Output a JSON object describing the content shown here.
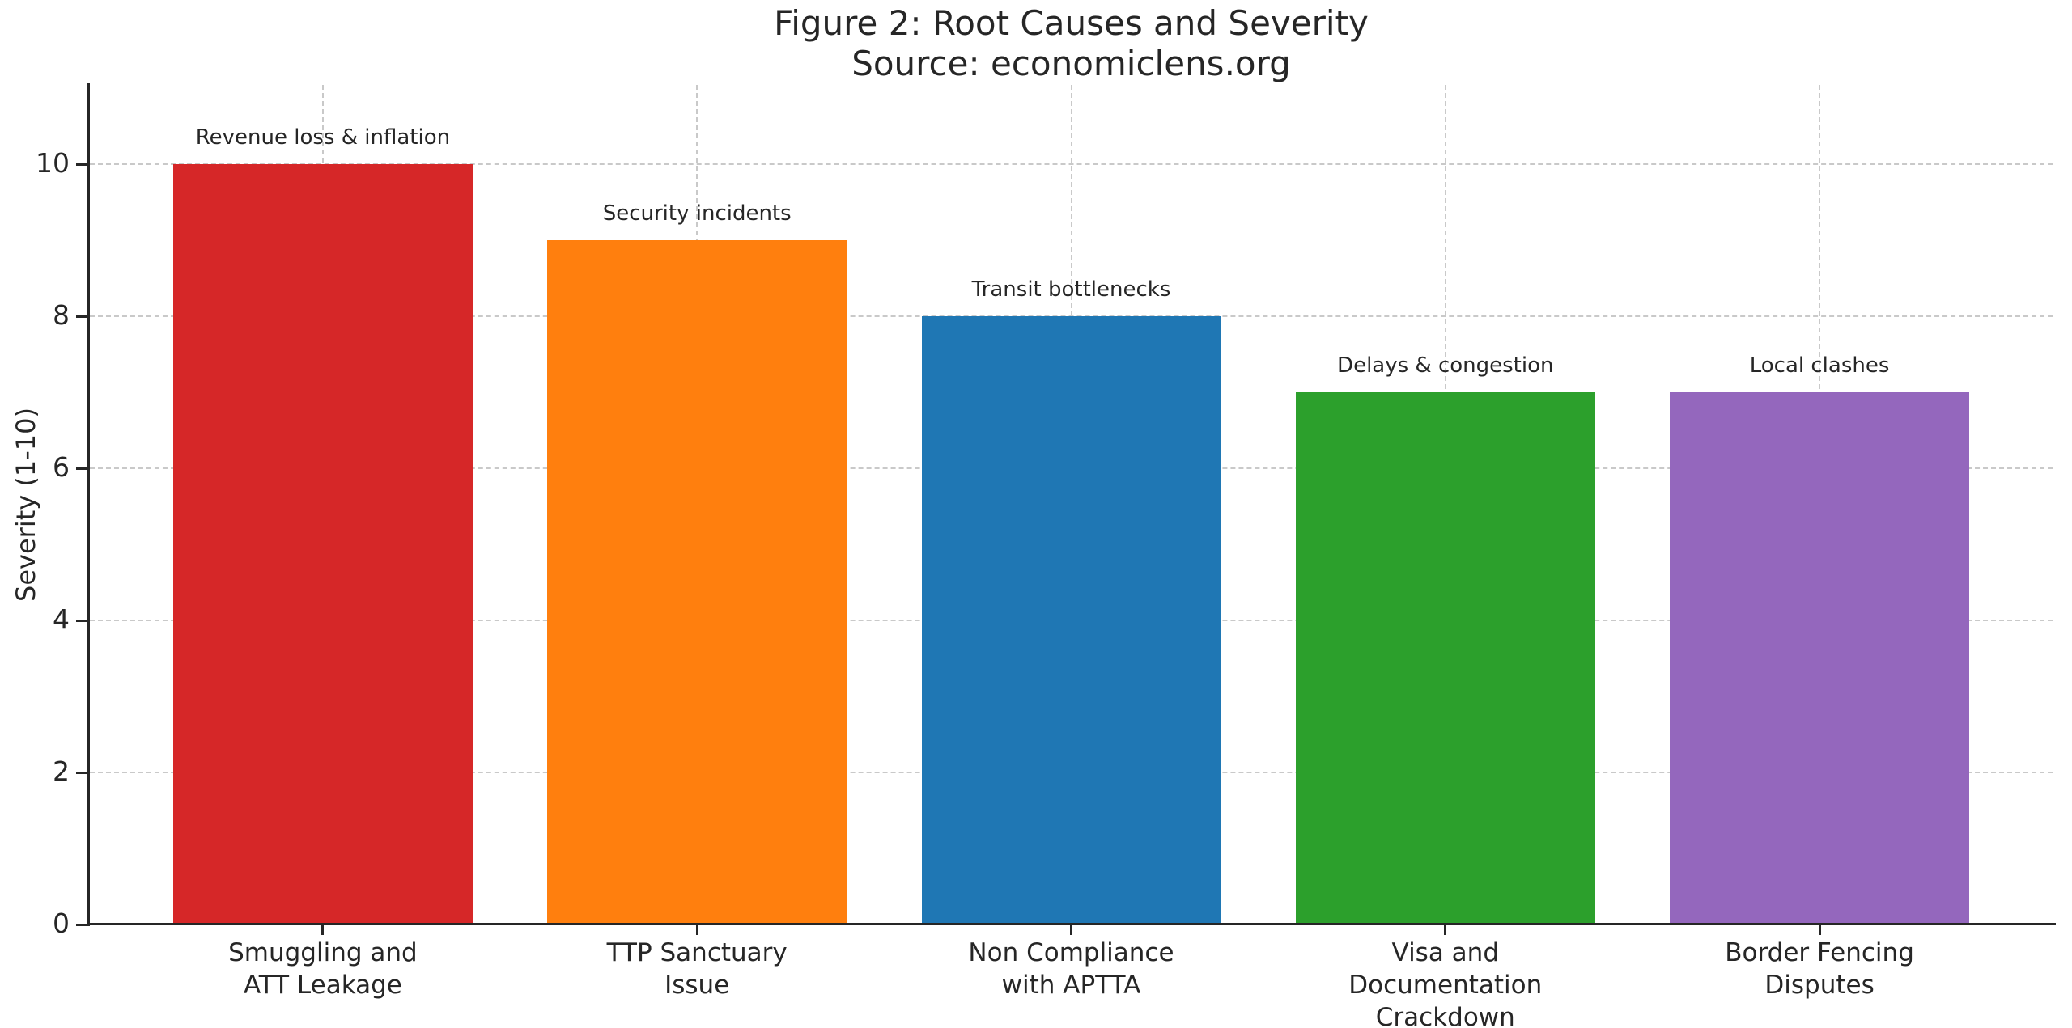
{
  "chart_data": {
    "type": "bar",
    "title": "Figure 2: Root Causes and Severity",
    "subtitle": "Source: economiclens.org",
    "ylabel": "Severity (1-10)",
    "xlabel": "",
    "categories": [
      "Smuggling and\nATT Leakage",
      "TTP Sanctuary\nIssue",
      "Non Compliance\nwith APTTA",
      "Visa and\nDocumentation\nCrackdown",
      "Border Fencing\nDisputes"
    ],
    "values": [
      10,
      9,
      8,
      7,
      7
    ],
    "bar_labels": [
      "Revenue loss & inflation",
      "Security incidents",
      "Transit bottlenecks",
      "Delays & congestion",
      "Local clashes"
    ],
    "bar_colors": [
      "#d62728",
      "#ff7f0e",
      "#1f77b4",
      "#2ca02c",
      "#9467bd"
    ],
    "yticks": [
      0,
      2,
      4,
      6,
      8,
      10
    ],
    "ylim": [
      0,
      11.05
    ],
    "grid": "dashed",
    "grid_color": "#c9c9c9",
    "axis_color": "#262626",
    "text_color": "#262626",
    "legend": "none"
  }
}
